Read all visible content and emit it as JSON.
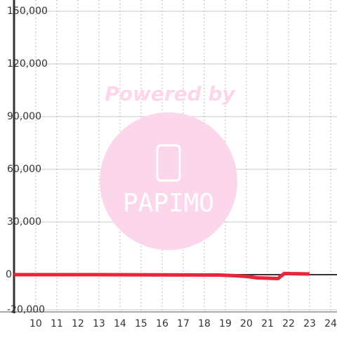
{
  "chart_data": {
    "type": "line",
    "watermark": [
      "Powered by",
      "PAPIMO"
    ],
    "x": [
      8.97,
      13,
      18.7,
      19.5,
      20,
      20.5,
      21,
      21.5,
      21.8,
      22,
      23
    ],
    "series": [
      {
        "color": "#e8253a",
        "values": [
          0,
          0,
          -200,
          -600,
          -1000,
          -1800,
          -2000,
          -2200,
          700,
          600,
          400
        ]
      }
    ],
    "xlim": [
      8.97,
      24.3
    ],
    "xticks": [
      10,
      11,
      12,
      13,
      14,
      15,
      16,
      17,
      18,
      19,
      20,
      21,
      22,
      23,
      24
    ],
    "ylim": [
      -20000,
      150000
    ],
    "yticks": [
      {
        "value": -20000,
        "label": "-20,000"
      },
      0,
      {
        "value": 30000,
        "label": "30,000"
      },
      {
        "value": 60000,
        "label": "60,000"
      },
      {
        "value": 90000,
        "label": "90,000"
      },
      {
        "value": 120000,
        "label": "120,000"
      },
      {
        "value": 150000,
        "label": "150,000"
      }
    ],
    "grid": true
  }
}
